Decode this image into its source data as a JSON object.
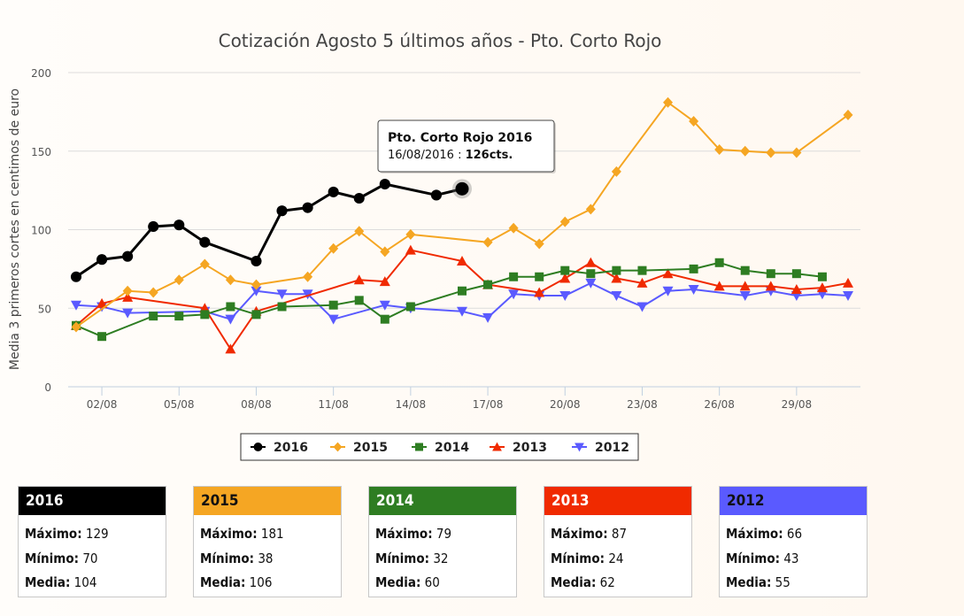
{
  "chart_data": {
    "type": "line",
    "title": "Cotización Agosto 5 últimos años - Pto. Corto Rojo",
    "ylabel": "Media 3 primeros cortes en centimos de euro",
    "xlabel": "",
    "ylim": [
      0,
      200
    ],
    "yticks": [
      0,
      50,
      100,
      150,
      200
    ],
    "xlim": [
      1,
      31
    ],
    "xtick_labels": [
      "02/08",
      "05/08",
      "08/08",
      "11/08",
      "14/08",
      "17/08",
      "20/08",
      "23/08",
      "26/08",
      "29/08"
    ],
    "xtick_days": [
      2,
      5,
      8,
      11,
      14,
      17,
      20,
      23,
      26,
      29
    ],
    "grid": "horizontal",
    "legend_position": "bottom-center",
    "series": [
      {
        "name": "2016",
        "color": "#000000",
        "marker": "circle",
        "x": [
          1,
          2,
          3,
          4,
          5,
          6,
          8,
          9,
          10,
          11,
          12,
          13,
          15,
          16
        ],
        "y": [
          70,
          81,
          83,
          102,
          103,
          92,
          80,
          112,
          114,
          124,
          120,
          129,
          122,
          126
        ]
      },
      {
        "name": "2015",
        "color": "#f5a623",
        "marker": "diamond",
        "x": [
          1,
          3,
          4,
          5,
          6,
          7,
          8,
          10,
          11,
          12,
          13,
          14,
          17,
          18,
          19,
          20,
          21,
          22,
          24,
          25,
          26,
          27,
          28,
          29,
          31
        ],
        "y": [
          38,
          61,
          60,
          68,
          78,
          68,
          65,
          70,
          88,
          99,
          86,
          97,
          92,
          101,
          91,
          105,
          113,
          137,
          181,
          169,
          151,
          150,
          149,
          149,
          173
        ]
      },
      {
        "name": "2014",
        "color": "#2e7d22",
        "marker": "square",
        "x": [
          1,
          2,
          4,
          5,
          6,
          7,
          8,
          9,
          11,
          12,
          13,
          14,
          16,
          17,
          18,
          19,
          20,
          21,
          22,
          23,
          25,
          26,
          27,
          28,
          29,
          30
        ],
        "y": [
          39,
          32,
          45,
          45,
          46,
          51,
          46,
          51,
          52,
          55,
          43,
          51,
          61,
          65,
          70,
          70,
          74,
          72,
          74,
          74,
          75,
          79,
          74,
          72,
          72,
          70
        ]
      },
      {
        "name": "2013",
        "color": "#f02a00",
        "marker": "triangle",
        "x": [
          1,
          2,
          3,
          6,
          7,
          8,
          12,
          13,
          14,
          16,
          17,
          19,
          20,
          21,
          22,
          23,
          24,
          26,
          27,
          28,
          29,
          30,
          31
        ],
        "y": [
          39,
          53,
          57,
          50,
          24,
          48,
          68,
          67,
          87,
          80,
          65,
          60,
          69,
          79,
          69,
          66,
          72,
          64,
          64,
          64,
          62,
          63,
          66
        ]
      },
      {
        "name": "2012",
        "color": "#5a5aff",
        "marker": "triangle-down",
        "x": [
          1,
          2,
          3,
          6,
          7,
          8,
          9,
          10,
          11,
          13,
          14,
          16,
          17,
          18,
          19,
          20,
          21,
          22,
          23,
          24,
          25,
          27,
          28,
          29,
          30,
          31
        ],
        "y": [
          52,
          51,
          47,
          48,
          43,
          61,
          59,
          59,
          43,
          52,
          50,
          48,
          44,
          59,
          58,
          58,
          66,
          58,
          51,
          61,
          62,
          58,
          61,
          58,
          59,
          58
        ]
      }
    ],
    "tooltip": {
      "title": "Pto. Corto Rojo 2016",
      "date": "16/08/2016",
      "value_text": "126cts.",
      "series_index": 0,
      "point_index": 13
    }
  },
  "summary_cards": [
    {
      "year": "2016",
      "color": "#000000",
      "text_color": "#ffffff",
      "max_label": "Máximo:",
      "max": "129",
      "min_label": "Mínimo:",
      "min": "70",
      "mean_label": "Media:",
      "mean": "104"
    },
    {
      "year": "2015",
      "color": "#f5a623",
      "text_color": "#111111",
      "max_label": "Máximo:",
      "max": "181",
      "min_label": "Mínimo:",
      "min": "38",
      "mean_label": "Media:",
      "mean": "106"
    },
    {
      "year": "2014",
      "color": "#2e7d22",
      "text_color": "#ffffff",
      "max_label": "Máximo:",
      "max": "79",
      "min_label": "Mínimo:",
      "min": "32",
      "mean_label": "Media:",
      "mean": "60"
    },
    {
      "year": "2013",
      "color": "#f02a00",
      "text_color": "#ffffff",
      "max_label": "Máximo:",
      "max": "87",
      "min_label": "Mínimo:",
      "min": "24",
      "mean_label": "Media:",
      "mean": "62"
    },
    {
      "year": "2012",
      "color": "#5a5aff",
      "text_color": "#111111",
      "max_label": "Máximo:",
      "max": "66",
      "min_label": "Mínimo:",
      "min": "43",
      "mean_label": "Media:",
      "mean": "55"
    }
  ]
}
